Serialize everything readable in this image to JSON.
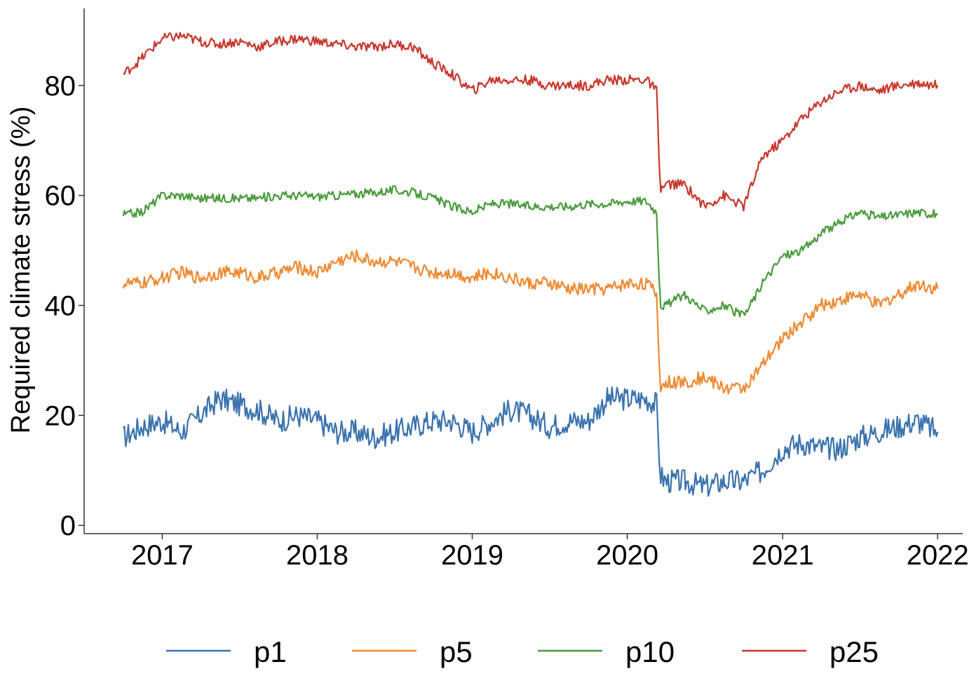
{
  "chart_data": {
    "type": "line",
    "title": "",
    "xlabel": "",
    "ylabel": "Required climate stress (%)",
    "x_ticks": [
      "2017",
      "2018",
      "2019",
      "2020",
      "2021",
      "2022"
    ],
    "y_ticks": [
      "0",
      "20",
      "40",
      "60",
      "80"
    ],
    "xlim": [
      "2016-07-01",
      "2022-03-01"
    ],
    "ylim": [
      -1.5,
      94
    ],
    "grid": false,
    "legend_position": "bottom",
    "series": [
      {
        "name": "p1",
        "color": "#3b73ae",
        "x": [
          "2016-10-01",
          "2016-11-15",
          "2017-01-01",
          "2017-02-15",
          "2017-04-01",
          "2017-05-15",
          "2017-07-01",
          "2017-08-15",
          "2017-10-01",
          "2017-11-15",
          "2018-01-01",
          "2018-02-15",
          "2018-04-01",
          "2018-05-15",
          "2018-07-01",
          "2018-08-15",
          "2018-10-01",
          "2018-11-15",
          "2019-01-01",
          "2019-02-15",
          "2019-04-01",
          "2019-05-15",
          "2019-07-01",
          "2019-08-15",
          "2019-10-01",
          "2019-11-15",
          "2020-01-01",
          "2020-02-15",
          "2020-03-10",
          "2020-03-20",
          "2020-04-01",
          "2020-05-15",
          "2020-07-01",
          "2020-08-15",
          "2020-10-01",
          "2020-11-15",
          "2021-01-01",
          "2021-02-15",
          "2021-04-01",
          "2021-05-15",
          "2021-07-01",
          "2021-08-15",
          "2021-10-01",
          "2021-11-15",
          "2022-01-01"
        ],
        "values": [
          16,
          18,
          19,
          17,
          20,
          23,
          22,
          21,
          19,
          20,
          19,
          17,
          17,
          16,
          17,
          18,
          19,
          19,
          17,
          19,
          21,
          20,
          18,
          19,
          19,
          23,
          23,
          23,
          22,
          9,
          8,
          8,
          7,
          8,
          8,
          10,
          14,
          15,
          14,
          14,
          16,
          17,
          18,
          19,
          17
        ]
      },
      {
        "name": "p5",
        "color": "#ee8a33",
        "x": [
          "2016-10-01",
          "2016-11-15",
          "2017-01-01",
          "2017-02-15",
          "2017-04-01",
          "2017-05-15",
          "2017-07-01",
          "2017-08-15",
          "2017-10-01",
          "2017-11-15",
          "2018-01-01",
          "2018-02-15",
          "2018-04-01",
          "2018-05-15",
          "2018-07-01",
          "2018-08-15",
          "2018-10-01",
          "2018-11-15",
          "2019-01-01",
          "2019-02-15",
          "2019-04-01",
          "2019-05-15",
          "2019-07-01",
          "2019-08-15",
          "2019-10-01",
          "2019-11-15",
          "2020-01-01",
          "2020-02-15",
          "2020-03-10",
          "2020-03-20",
          "2020-04-01",
          "2020-05-15",
          "2020-07-01",
          "2020-08-15",
          "2020-10-01",
          "2020-11-15",
          "2021-01-01",
          "2021-02-15",
          "2021-04-01",
          "2021-05-15",
          "2021-07-01",
          "2021-08-15",
          "2021-10-01",
          "2021-11-15",
          "2022-01-01"
        ],
        "values": [
          44,
          44,
          45,
          46,
          45,
          46,
          46,
          45,
          46,
          47,
          46,
          48,
          49,
          48,
          48,
          47,
          46,
          46,
          45,
          46,
          45,
          44,
          44,
          43,
          43,
          43,
          44,
          44,
          42,
          25,
          26,
          26,
          27,
          25,
          25,
          29,
          34,
          37,
          40,
          41,
          42,
          40,
          42,
          44,
          43
        ]
      },
      {
        "name": "p10",
        "color": "#4a9b3c",
        "x": [
          "2016-10-01",
          "2016-11-15",
          "2017-01-01",
          "2017-02-15",
          "2017-04-01",
          "2017-05-15",
          "2017-07-01",
          "2017-08-15",
          "2017-10-01",
          "2017-11-15",
          "2018-01-01",
          "2018-02-15",
          "2018-04-01",
          "2018-05-15",
          "2018-07-01",
          "2018-08-15",
          "2018-10-01",
          "2018-11-15",
          "2019-01-01",
          "2019-02-15",
          "2019-04-01",
          "2019-05-15",
          "2019-07-01",
          "2019-08-15",
          "2019-10-01",
          "2019-11-15",
          "2020-01-01",
          "2020-02-15",
          "2020-03-10",
          "2020-03-20",
          "2020-04-01",
          "2020-05-15",
          "2020-07-01",
          "2020-08-15",
          "2020-10-01",
          "2020-11-15",
          "2021-01-01",
          "2021-02-15",
          "2021-04-01",
          "2021-05-15",
          "2021-07-01",
          "2021-08-15",
          "2021-10-01",
          "2021-11-15",
          "2022-01-01"
        ],
        "values": [
          56.5,
          57,
          60,
          60,
          59.5,
          59.5,
          59.5,
          59.5,
          60,
          60,
          59.8,
          60,
          60.3,
          60.5,
          61,
          60.5,
          59.5,
          58,
          57,
          58.5,
          58.5,
          58,
          58,
          58,
          58.5,
          58.5,
          59,
          59,
          57,
          40,
          40,
          42,
          39,
          40,
          38,
          44,
          49,
          50,
          53,
          55,
          57,
          56,
          56.5,
          57,
          56.5
        ]
      },
      {
        "name": "p25",
        "color": "#c8382e",
        "x": [
          "2016-10-01",
          "2016-11-15",
          "2017-01-01",
          "2017-02-15",
          "2017-04-01",
          "2017-05-15",
          "2017-07-01",
          "2017-08-15",
          "2017-10-01",
          "2017-11-15",
          "2018-01-01",
          "2018-02-15",
          "2018-04-01",
          "2018-05-15",
          "2018-07-01",
          "2018-08-15",
          "2018-10-01",
          "2018-11-15",
          "2019-01-01",
          "2019-02-15",
          "2019-04-01",
          "2019-05-15",
          "2019-07-01",
          "2019-08-15",
          "2019-10-01",
          "2019-11-15",
          "2020-01-01",
          "2020-02-15",
          "2020-03-10",
          "2020-03-20",
          "2020-04-01",
          "2020-05-15",
          "2020-07-01",
          "2020-08-15",
          "2020-10-01",
          "2020-11-15",
          "2021-01-01",
          "2021-02-15",
          "2021-04-01",
          "2021-05-15",
          "2021-07-01",
          "2021-08-15",
          "2021-10-01",
          "2021-11-15",
          "2022-01-01"
        ],
        "values": [
          82,
          85,
          88.5,
          89,
          88,
          87.5,
          88,
          87,
          88,
          88.5,
          88,
          87.5,
          87,
          87,
          87.5,
          87,
          84,
          82,
          79,
          81,
          81,
          81,
          80,
          80,
          80,
          81,
          81,
          81,
          79,
          61,
          62,
          62,
          58,
          60,
          58,
          67,
          70,
          74,
          77,
          79,
          80,
          79,
          80,
          80.5,
          80
        ]
      }
    ]
  }
}
